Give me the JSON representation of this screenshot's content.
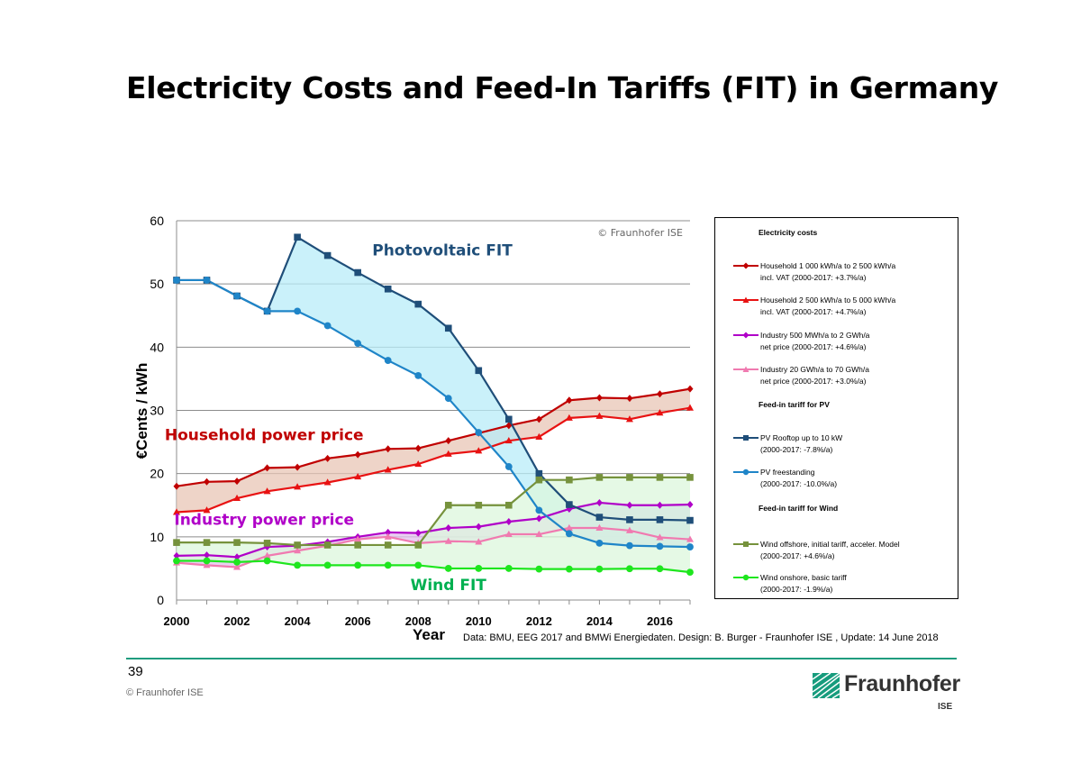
{
  "page": {
    "title": "Electricity Costs and Feed-In Tariffs (FIT) in Germany",
    "page_number": "39",
    "footer": "© Fraunhofer ISE",
    "source": "Data: BMU, EEG 2017 and BMWi Energiedaten. Design: B. Burger - Fraunhofer ISE , Update: 14 June 2018",
    "logo_name": "Fraunhofer",
    "logo_sub": "ISE",
    "colors": {
      "accent_rule": "#1f9c7e",
      "logo_green": "#179c7d"
    }
  },
  "legend": {
    "section_costs": "Electricity costs",
    "section_pv": "Feed-in tariff for PV",
    "section_wind": "Feed-in tariff for Wind",
    "items": [
      {
        "line1": "Household 1 000 kWh/a to 2 500 kWh/a",
        "line2": "incl. VAT (2000-2017: +3.7%/a)"
      },
      {
        "line1": "Household 2 500 kWh/a to 5 000 kWh/a",
        "line2": "incl. VAT (2000-2017: +4.7%/a)"
      },
      {
        "line1": "Industry 500 MWh/a to 2 GWh/a",
        "line2": "net price (2000-2017: +4.6%/a)"
      },
      {
        "line1": "Industry 20 GWh/a to 70 GWh/a",
        "line2": "net price (2000-2017: +3.0%/a)"
      },
      {
        "line1": "PV Rooftop up to 10 kW",
        "line2": "(2000-2017: -7.8%/a)"
      },
      {
        "line1": "PV freestanding",
        "line2": "(2000-2017: -10.0%/a)"
      },
      {
        "line1": "Wind offshore, initial tariff, acceler. Model",
        "line2": "(2000-2017: +4.6%/a)"
      },
      {
        "line1": "Wind onshore, basic tariff",
        "line2": "(2000-2017: -1.9%/a)"
      }
    ]
  },
  "chart_data": {
    "type": "line",
    "title": "Electricity Costs and Feed-In Tariffs (FIT) in Germany",
    "xlabel": "Year",
    "ylabel": "€Cents / kWh",
    "xlim": [
      2000,
      2017
    ],
    "ylim": [
      0,
      60
    ],
    "x_ticks": [
      2000,
      2002,
      2004,
      2006,
      2008,
      2010,
      2012,
      2014,
      2016
    ],
    "y_ticks": [
      0,
      10,
      20,
      30,
      40,
      50,
      60
    ],
    "grid": "horizontal",
    "watermark": "© Fraunhofer ISE",
    "annotations": [
      {
        "text": "Photovoltaic FIT",
        "color": "#1f4e79",
        "x": 2008.8,
        "y": 54.5
      },
      {
        "text": "Household power price",
        "color": "#c00000",
        "x": 2002.9,
        "y": 25.3
      },
      {
        "text": "Industry power price",
        "color": "#b000c8",
        "x": 2002.9,
        "y": 11.9
      },
      {
        "text": "Wind FIT",
        "color": "#00b050",
        "x": 2009.0,
        "y": 1.6
      }
    ],
    "bands": [
      {
        "between": [
          0,
          1
        ],
        "color": "#e8c6b6"
      },
      {
        "between": [
          2,
          3
        ],
        "color": "#e2c0ee"
      },
      {
        "between": [
          4,
          5
        ],
        "color": "#b8ecf8"
      },
      {
        "between": [
          2,
          5
        ],
        "color": "#c2c8f2",
        "from_x": 2012
      },
      {
        "between": [
          6,
          7
        ],
        "color": "#dcf7dc"
      }
    ],
    "series": [
      {
        "name": "Household 1 000 kWh/a to 2 500 kWh/a",
        "color": "#c00000",
        "marker": "diamond",
        "x": [
          2000,
          2001,
          2002,
          2003,
          2004,
          2005,
          2006,
          2007,
          2008,
          2009,
          2010,
          2011,
          2012,
          2013,
          2014,
          2015,
          2016,
          2017
        ],
        "values": [
          18.0,
          18.7,
          18.8,
          20.9,
          21.0,
          22.4,
          23.0,
          23.9,
          24.0,
          25.2,
          26.4,
          27.6,
          28.6,
          31.6,
          32.0,
          31.9,
          32.6,
          33.4
        ]
      },
      {
        "name": "Household 2 500 kWh/a to 5 000 kWh/a",
        "color": "#e81212",
        "marker": "triangle",
        "x": [
          2000,
          2001,
          2002,
          2003,
          2004,
          2005,
          2006,
          2007,
          2008,
          2009,
          2010,
          2011,
          2012,
          2013,
          2014,
          2015,
          2016,
          2017
        ],
        "values": [
          13.9,
          14.2,
          16.1,
          17.2,
          17.9,
          18.6,
          19.5,
          20.6,
          21.5,
          23.1,
          23.6,
          25.2,
          25.8,
          28.8,
          29.1,
          28.6,
          29.6,
          30.4
        ]
      },
      {
        "name": "Industry 500 MWh/a to 2 GWh/a",
        "color": "#b000c8",
        "marker": "diamond",
        "x": [
          2000,
          2001,
          2002,
          2003,
          2004,
          2005,
          2006,
          2007,
          2008,
          2009,
          2010,
          2011,
          2012,
          2013,
          2014,
          2015,
          2016,
          2017
        ],
        "values": [
          7.0,
          7.1,
          6.8,
          8.4,
          8.6,
          9.2,
          10.0,
          10.7,
          10.6,
          11.4,
          11.6,
          12.4,
          12.9,
          14.4,
          15.4,
          15.0,
          15.0,
          15.1
        ]
      },
      {
        "name": "Industry 20 GWh/a to 70 GWh/a",
        "color": "#f07ab0",
        "marker": "triangle",
        "x": [
          2000,
          2001,
          2002,
          2003,
          2004,
          2005,
          2006,
          2007,
          2008,
          2009,
          2010,
          2011,
          2012,
          2013,
          2014,
          2015,
          2016,
          2017
        ],
        "values": [
          5.9,
          5.5,
          5.2,
          7.0,
          7.8,
          8.6,
          9.6,
          10.0,
          9.0,
          9.3,
          9.2,
          10.4,
          10.4,
          11.4,
          11.4,
          11.0,
          9.9,
          9.6
        ]
      },
      {
        "name": "PV Rooftop up to 10 kW",
        "color": "#1f4e79",
        "marker": "square",
        "x": [
          2000,
          2001,
          2002,
          2003,
          2004,
          2005,
          2006,
          2007,
          2008,
          2009,
          2010,
          2011,
          2012,
          2013,
          2014,
          2015,
          2016,
          2017
        ],
        "values": [
          50.6,
          50.6,
          48.1,
          45.7,
          57.4,
          54.5,
          51.8,
          49.2,
          46.8,
          43.0,
          36.3,
          28.6,
          20.0,
          15.1,
          13.1,
          12.7,
          12.7,
          12.6
        ]
      },
      {
        "name": "PV freestanding",
        "color": "#1f85c8",
        "marker": "circle",
        "x": [
          2000,
          2001,
          2002,
          2003,
          2004,
          2005,
          2006,
          2007,
          2008,
          2009,
          2010,
          2011,
          2012,
          2013,
          2014,
          2015,
          2016,
          2017
        ],
        "values": [
          50.6,
          50.6,
          48.1,
          45.7,
          45.7,
          43.4,
          40.6,
          37.9,
          35.5,
          31.9,
          26.5,
          21.1,
          14.2,
          10.5,
          9.0,
          8.6,
          8.5,
          8.4
        ]
      },
      {
        "name": "Wind offshore, initial tariff, acceler. Model",
        "color": "#76923c",
        "marker": "square",
        "x": [
          2000,
          2001,
          2002,
          2003,
          2004,
          2005,
          2006,
          2007,
          2008,
          2009,
          2010,
          2011,
          2012,
          2013,
          2014,
          2015,
          2016,
          2017
        ],
        "values": [
          9.1,
          9.1,
          9.1,
          9.0,
          8.7,
          8.7,
          8.7,
          8.7,
          8.7,
          15.0,
          15.0,
          15.0,
          19.0,
          19.0,
          19.4,
          19.4,
          19.4,
          19.4
        ]
      },
      {
        "name": "Wind onshore, basic tariff",
        "color": "#1ee61e",
        "marker": "circle",
        "x": [
          2000,
          2001,
          2002,
          2003,
          2004,
          2005,
          2006,
          2007,
          2008,
          2009,
          2010,
          2011,
          2012,
          2013,
          2014,
          2015,
          2016,
          2017
        ],
        "values": [
          6.2,
          6.2,
          6.0,
          6.2,
          5.5,
          5.5,
          5.5,
          5.5,
          5.5,
          5.0,
          5.0,
          5.0,
          4.9,
          4.9,
          4.9,
          4.95,
          4.95,
          4.4
        ]
      }
    ]
  }
}
